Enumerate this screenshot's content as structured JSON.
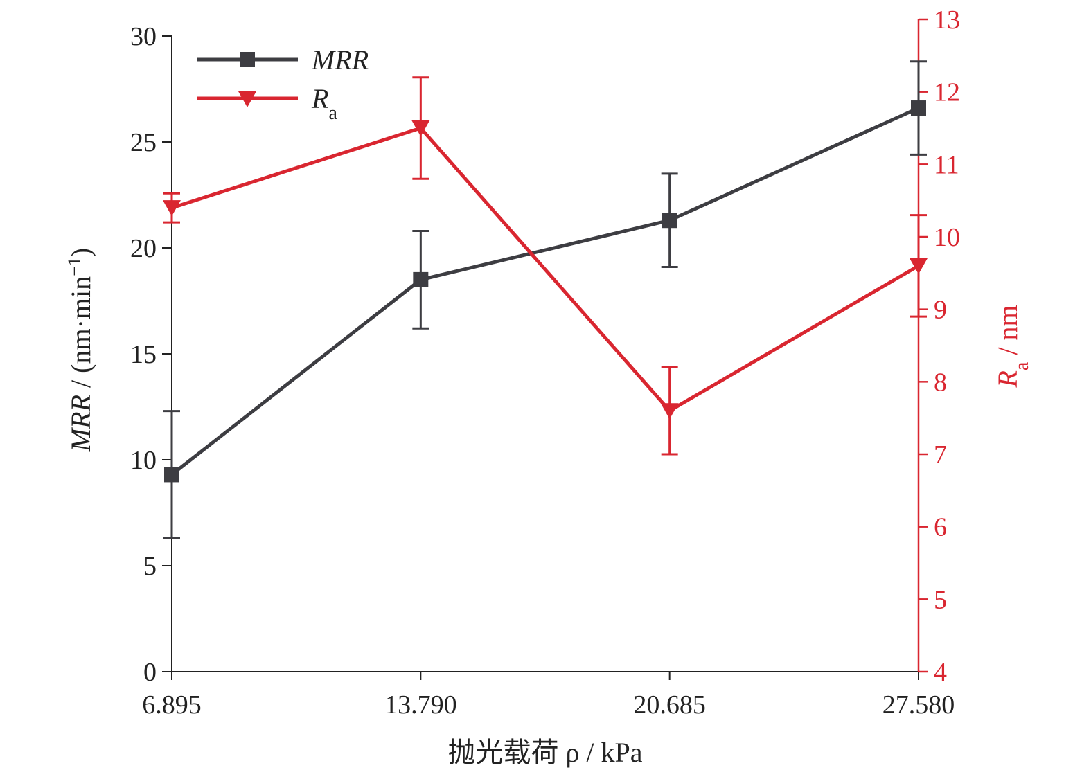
{
  "chart_data": {
    "type": "line",
    "x": [
      6.895,
      13.79,
      20.685,
      27.58
    ],
    "x_tick_labels": [
      "6.895",
      "13.790",
      "20.685",
      "27.580"
    ],
    "xlabel": "抛光载荷 ρ / kPa",
    "ylabel_left": {
      "base": "MRR",
      "rest": " / (nm·min",
      "sup": "−1",
      "close": ")"
    },
    "ylabel_right": {
      "base": "R",
      "sub": "a",
      "rest": " / nm"
    },
    "ylim_left": [
      0,
      30
    ],
    "ylim_right": [
      4,
      13
    ],
    "y_ticks_left": [
      "0",
      "5",
      "10",
      "15",
      "20",
      "25",
      "30"
    ],
    "y_ticks_right": [
      "4",
      "5",
      "6",
      "7",
      "8",
      "9",
      "10",
      "11",
      "12",
      "13"
    ],
    "grid": false,
    "legend_position": "top-left",
    "series": [
      {
        "name": "MRR",
        "axis": "left",
        "color": "#3d3d42",
        "marker": "square",
        "values": [
          9.3,
          18.5,
          21.3,
          26.6
        ],
        "error": [
          3.0,
          2.3,
          2.2,
          2.2
        ]
      },
      {
        "name": "R",
        "name_sub": "a",
        "axis": "right",
        "color": "#d92630",
        "marker": "triangle-down",
        "values": [
          10.4,
          11.5,
          7.6,
          9.6
        ],
        "error": [
          0.2,
          0.7,
          0.6,
          0.7
        ]
      }
    ]
  }
}
